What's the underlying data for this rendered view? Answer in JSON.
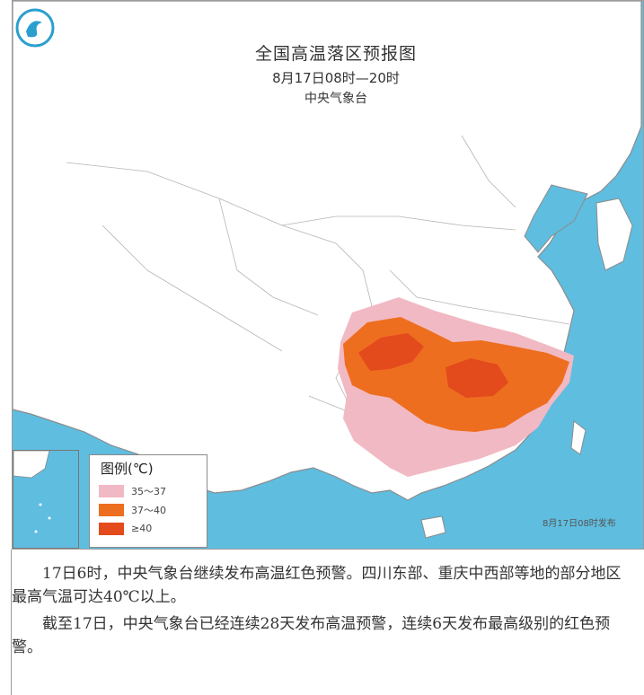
{
  "map": {
    "title": "全国高温落区预报图",
    "subtitle": "8月17日08时—20时",
    "issuer": "中央气象台",
    "credit": "8月17日08时发布",
    "legend": {
      "title": "图例(℃)",
      "items": [
        {
          "label": "35～37",
          "color": "#f1b9c3"
        },
        {
          "label": "37～40",
          "color": "#ee6e1f"
        },
        {
          "label": "≥40",
          "color": "#e34a1c"
        }
      ]
    },
    "colors": {
      "sea": "#5fbde0",
      "land": "#ffffff",
      "border": "#9a9a9a"
    }
  },
  "article": {
    "para1": "17日6时，中央气象台继续发布高温红色预警。四川东部、重庆中西部等地的部分地区最高气温可达40℃以上。",
    "para2": "截至17日，中央气象台已经连续28天发布高温预警，连续6天发布最高级别的红色预警。"
  }
}
